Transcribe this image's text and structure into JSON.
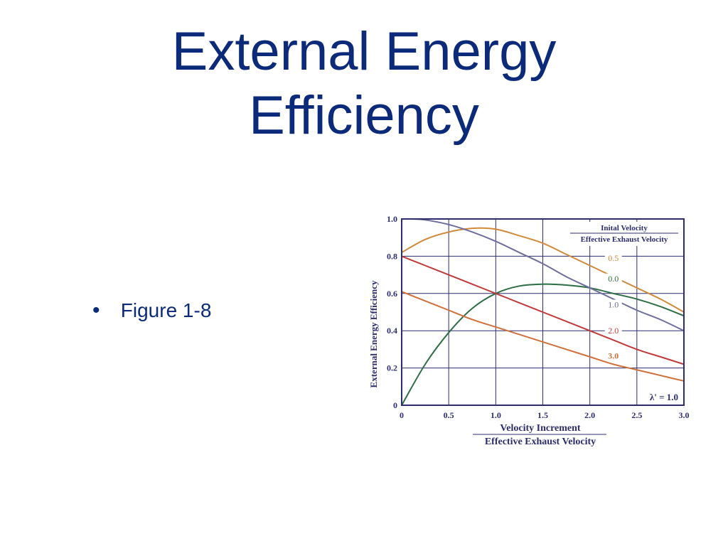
{
  "slide": {
    "title_line1": "External Energy",
    "title_line2": "Efficiency",
    "bullet": "Figure 1-8"
  },
  "chart_data": {
    "type": "line",
    "title": "",
    "xlabel": "Velocity Increment",
    "xlabel_denominator": "Effective Exhaust Velocity",
    "ylabel": "External Energy Efficiency",
    "xlim": [
      0,
      3.0
    ],
    "ylim": [
      0,
      1.0
    ],
    "x_ticks": [
      "0",
      "0.5",
      "1.0",
      "1.5",
      "2.0",
      "2.5",
      "3.0"
    ],
    "y_ticks": [
      "0",
      "0.2",
      "0.4",
      "0.6",
      "0.8",
      "1.0"
    ],
    "grid": true,
    "legend_title": "Inital Velocity",
    "legend_title_denominator": "Effective Exhaust Velocity",
    "legend_placement": "top-right",
    "annotation": "λ' = 1.0",
    "series": [
      {
        "name": "0.5",
        "color": "#d08a3a",
        "x": [
          0,
          0.25,
          0.5,
          0.75,
          1.0,
          1.25,
          1.5,
          1.75,
          2.0,
          2.25,
          2.5,
          2.75,
          3.0
        ],
        "y": [
          0.82,
          0.89,
          0.93,
          0.95,
          0.945,
          0.91,
          0.87,
          0.81,
          0.75,
          0.69,
          0.63,
          0.57,
          0.5
        ]
      },
      {
        "name": "0.0",
        "color": "#2e6e44",
        "x": [
          0,
          0.25,
          0.5,
          0.75,
          1.0,
          1.25,
          1.5,
          1.75,
          2.0,
          2.25,
          2.5,
          2.75,
          3.0
        ],
        "y": [
          0,
          0.22,
          0.39,
          0.52,
          0.6,
          0.64,
          0.65,
          0.645,
          0.63,
          0.6,
          0.57,
          0.53,
          0.48
        ]
      },
      {
        "name": "1.0",
        "color": "#6e6e9e",
        "x": [
          0.1,
          0.25,
          0.5,
          0.75,
          1.0,
          1.25,
          1.5,
          1.75,
          2.0,
          2.25,
          2.5,
          2.75,
          3.0
        ],
        "y": [
          1.0,
          0.995,
          0.97,
          0.93,
          0.88,
          0.82,
          0.76,
          0.69,
          0.63,
          0.57,
          0.51,
          0.46,
          0.4
        ]
      },
      {
        "name": "2.0",
        "color": "#c03a3a",
        "x": [
          0,
          0.25,
          0.5,
          0.75,
          1.0,
          1.25,
          1.5,
          1.75,
          2.0,
          2.25,
          2.5,
          2.75,
          3.0
        ],
        "y": [
          0.8,
          0.75,
          0.7,
          0.65,
          0.6,
          0.55,
          0.5,
          0.45,
          0.4,
          0.35,
          0.3,
          0.26,
          0.22
        ]
      },
      {
        "name": "3.0",
        "color": "#d0703a",
        "x": [
          0,
          0.25,
          0.5,
          0.75,
          1.0,
          1.25,
          1.5,
          1.75,
          2.0,
          2.25,
          2.5,
          2.75,
          3.0
        ],
        "y": [
          0.61,
          0.56,
          0.51,
          0.46,
          0.42,
          0.38,
          0.34,
          0.3,
          0.26,
          0.22,
          0.19,
          0.16,
          0.13
        ]
      }
    ]
  }
}
